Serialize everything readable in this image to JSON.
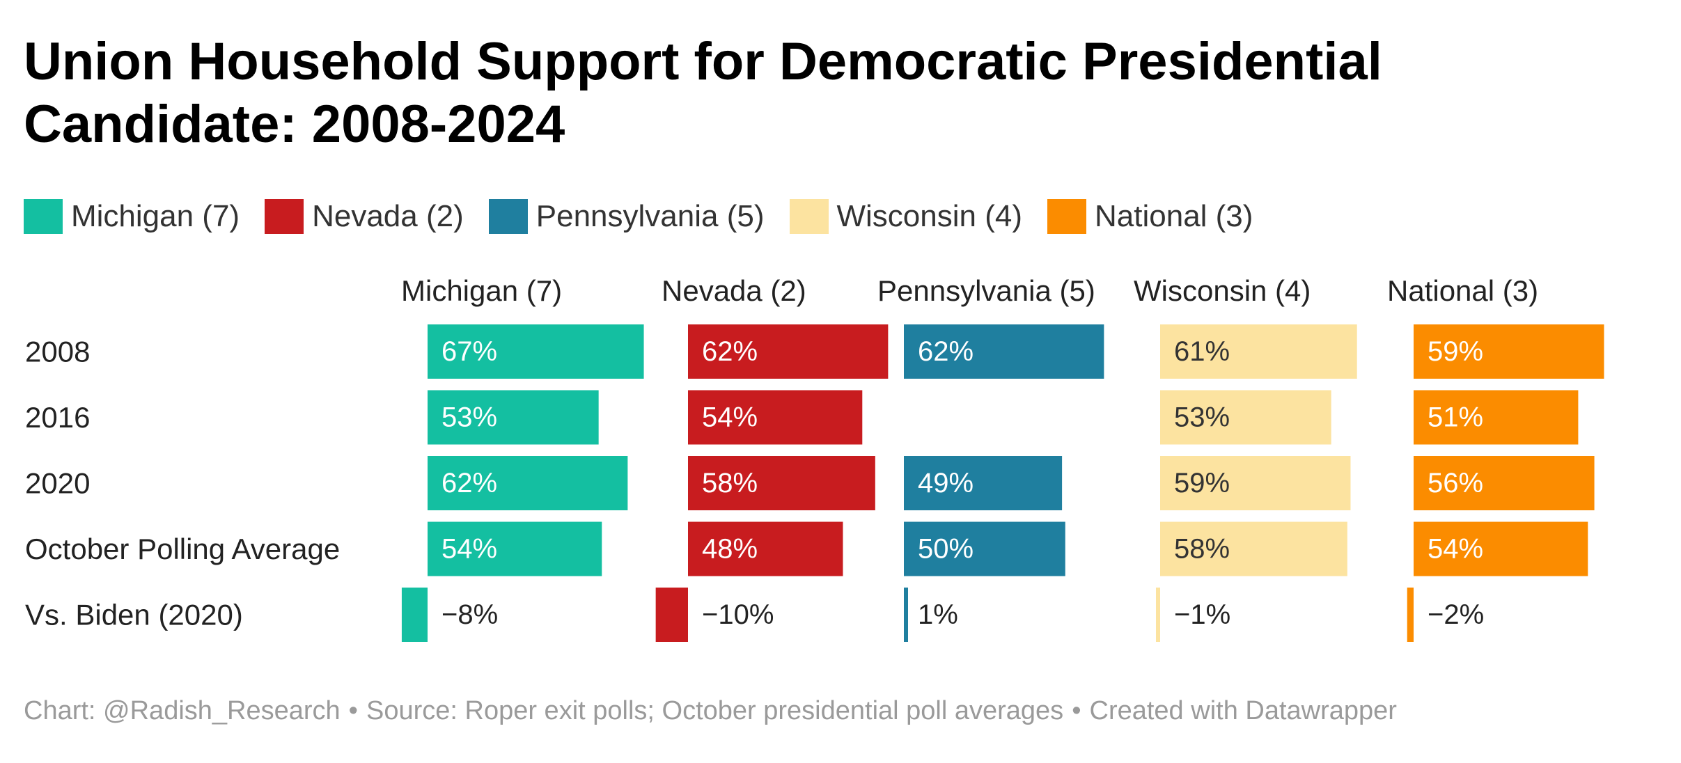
{
  "title": "Union Household Support for Democratic Presidential Candidate: 2008-2024",
  "legend": [
    {
      "label": "Michigan (7)",
      "color": "#14bfa1"
    },
    {
      "label": "Nevada (2)",
      "color": "#c81c1f"
    },
    {
      "label": "Pennsylvania (5)",
      "color": "#1f7f9f"
    },
    {
      "label": "Wisconsin (4)",
      "color": "#fce3a0"
    },
    {
      "label": "National (3)",
      "color": "#fb8c00"
    }
  ],
  "chart_data": {
    "type": "bar",
    "layout": "small-multiples-horizontal",
    "categories": [
      "2008",
      "2016",
      "2020",
      "October Polling Average",
      "Vs. Biden (2020)"
    ],
    "series": [
      {
        "name": "Michigan (7)",
        "color": "#14bfa1",
        "values": [
          67,
          53,
          62,
          54,
          -8
        ],
        "labels": [
          "67%",
          "53%",
          "62%",
          "54%",
          "−8%"
        ]
      },
      {
        "name": "Nevada (2)",
        "color": "#c81c1f",
        "values": [
          62,
          54,
          58,
          48,
          -10
        ],
        "labels": [
          "62%",
          "54%",
          "58%",
          "48%",
          "−10%"
        ]
      },
      {
        "name": "Pennsylvania (5)",
        "color": "#1f7f9f",
        "values": [
          62,
          null,
          49,
          50,
          1
        ],
        "labels": [
          "62%",
          "",
          "49%",
          "50%",
          "1%"
        ]
      },
      {
        "name": "Wisconsin (4)",
        "color": "#fce3a0",
        "values": [
          61,
          53,
          59,
          58,
          -1
        ],
        "labels": [
          "61%",
          "53%",
          "59%",
          "58%",
          "−1%"
        ]
      },
      {
        "name": "National (3)",
        "color": "#fb8c00",
        "values": [
          59,
          51,
          56,
          54,
          -2
        ],
        "labels": [
          "59%",
          "51%",
          "56%",
          "54%",
          "−2%"
        ]
      }
    ]
  },
  "footer": {
    "chart_credit": "Chart: @Radish_Research",
    "source": "Source: Roper exit polls; October presidential poll averages",
    "created_with": "Created with Datawrapper",
    "separator": "•"
  }
}
